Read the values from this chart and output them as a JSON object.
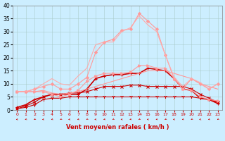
{
  "title": "",
  "xlabel": "Vent moyen/en rafales ( km/h )",
  "background_color": "#cceeff",
  "grid_color": "#aacccc",
  "x_ticks": [
    0,
    1,
    2,
    3,
    4,
    5,
    6,
    7,
    8,
    9,
    10,
    11,
    12,
    13,
    14,
    15,
    16,
    17,
    18,
    19,
    20,
    21,
    22,
    23
  ],
  "y_ticks": [
    0,
    5,
    10,
    15,
    20,
    25,
    30,
    35,
    40
  ],
  "xlim": [
    -0.5,
    23.5
  ],
  "ylim": [
    0,
    40
  ],
  "series": [
    {
      "x": [
        0,
        1,
        2,
        3,
        4,
        5,
        6,
        7,
        8,
        9,
        10,
        11,
        12,
        13,
        14,
        15,
        16,
        17,
        18,
        19,
        20,
        21,
        22,
        23
      ],
      "y": [
        0.5,
        1,
        2,
        4,
        4.5,
        4.5,
        5,
        5,
        5,
        5,
        5,
        5,
        5,
        5,
        5,
        5,
        5,
        5,
        5,
        5,
        5,
        4.5,
        4,
        3
      ],
      "color": "#cc0000",
      "lw": 0.8,
      "marker": "1",
      "ms": 3.5
    },
    {
      "x": [
        0,
        1,
        2,
        3,
        4,
        5,
        6,
        7,
        8,
        9,
        10,
        11,
        12,
        13,
        14,
        15,
        16,
        17,
        18,
        19,
        20,
        21,
        22,
        23
      ],
      "y": [
        0.5,
        1.5,
        3,
        5,
        6,
        6,
        6.5,
        6.5,
        7,
        8,
        9,
        9,
        9,
        9.5,
        9.5,
        9,
        9,
        9,
        9,
        9,
        8,
        6,
        4.5,
        3
      ],
      "color": "#cc0000",
      "lw": 0.8,
      "marker": "x",
      "ms": 3.0
    },
    {
      "x": [
        0,
        1,
        2,
        3,
        4,
        5,
        6,
        7,
        8,
        9,
        10,
        11,
        12,
        13,
        14,
        15,
        16,
        17,
        18,
        19,
        20,
        21,
        22,
        23
      ],
      "y": [
        1,
        2,
        4,
        5,
        6,
        6,
        6,
        6,
        8,
        12,
        13,
        13.5,
        13.5,
        14,
        14,
        16,
        15.5,
        15,
        12,
        8,
        7.5,
        4.5,
        4,
        2.5
      ],
      "color": "#cc0000",
      "lw": 1.2,
      "marker": "+",
      "ms": 3.5
    },
    {
      "x": [
        0,
        1,
        2,
        3,
        4,
        5,
        6,
        7,
        8,
        9,
        10,
        11,
        12,
        13,
        14,
        15,
        16,
        17,
        18,
        19,
        20,
        21,
        22,
        23
      ],
      "y": [
        7,
        7,
        7,
        7.5,
        6.5,
        6,
        6.5,
        7,
        8,
        9,
        10,
        11,
        12,
        13,
        14,
        15,
        15,
        15,
        14,
        13,
        12,
        10,
        9,
        8
      ],
      "color": "#ff9999",
      "lw": 0.8,
      "marker": null,
      "ms": 0
    },
    {
      "x": [
        0,
        1,
        2,
        3,
        4,
        5,
        6,
        7,
        8,
        9,
        10,
        11,
        12,
        13,
        14,
        15,
        16,
        17,
        18,
        19,
        20,
        21,
        22,
        23
      ],
      "y": [
        7,
        7,
        7,
        7,
        6,
        5,
        6,
        7.5,
        11,
        13,
        14,
        14,
        14,
        14.5,
        17,
        17,
        16,
        16,
        12,
        8,
        7.5,
        5,
        4,
        3.5
      ],
      "color": "#ff9999",
      "lw": 0.8,
      "marker": ">",
      "ms": 2.5
    },
    {
      "x": [
        0,
        1,
        2,
        3,
        4,
        5,
        6,
        7,
        8,
        9,
        10,
        11,
        12,
        13,
        14,
        15,
        16,
        17,
        18,
        19,
        20,
        21,
        22,
        23
      ],
      "y": [
        7,
        7,
        8,
        9,
        10,
        8,
        8,
        10,
        12.5,
        22,
        26,
        27,
        30.5,
        31,
        37,
        34,
        31,
        21,
        12,
        8,
        12,
        10,
        8,
        10
      ],
      "color": "#ff9999",
      "lw": 0.8,
      "marker": "D",
      "ms": 2.0
    },
    {
      "x": [
        0,
        1,
        2,
        3,
        4,
        5,
        6,
        7,
        8,
        9,
        10,
        11,
        12,
        13,
        14,
        15,
        16,
        17,
        18,
        19,
        20,
        21,
        22,
        23
      ],
      "y": [
        7,
        7,
        8,
        10,
        12,
        10,
        9.5,
        13,
        16,
        25,
        26,
        26,
        30,
        31.5,
        36,
        32.5,
        30,
        21,
        12.5,
        9,
        12,
        10.5,
        8,
        10
      ],
      "color": "#ffaaaa",
      "lw": 0.8,
      "marker": null,
      "ms": 0
    }
  ],
  "arrow_angles": [
    225,
    225,
    225,
    225,
    225,
    225,
    225,
    225,
    225,
    225,
    225,
    225,
    225,
    225,
    225,
    225,
    225,
    225,
    225,
    225,
    225,
    225,
    225,
    225
  ],
  "arrow_color": "#cc2222"
}
